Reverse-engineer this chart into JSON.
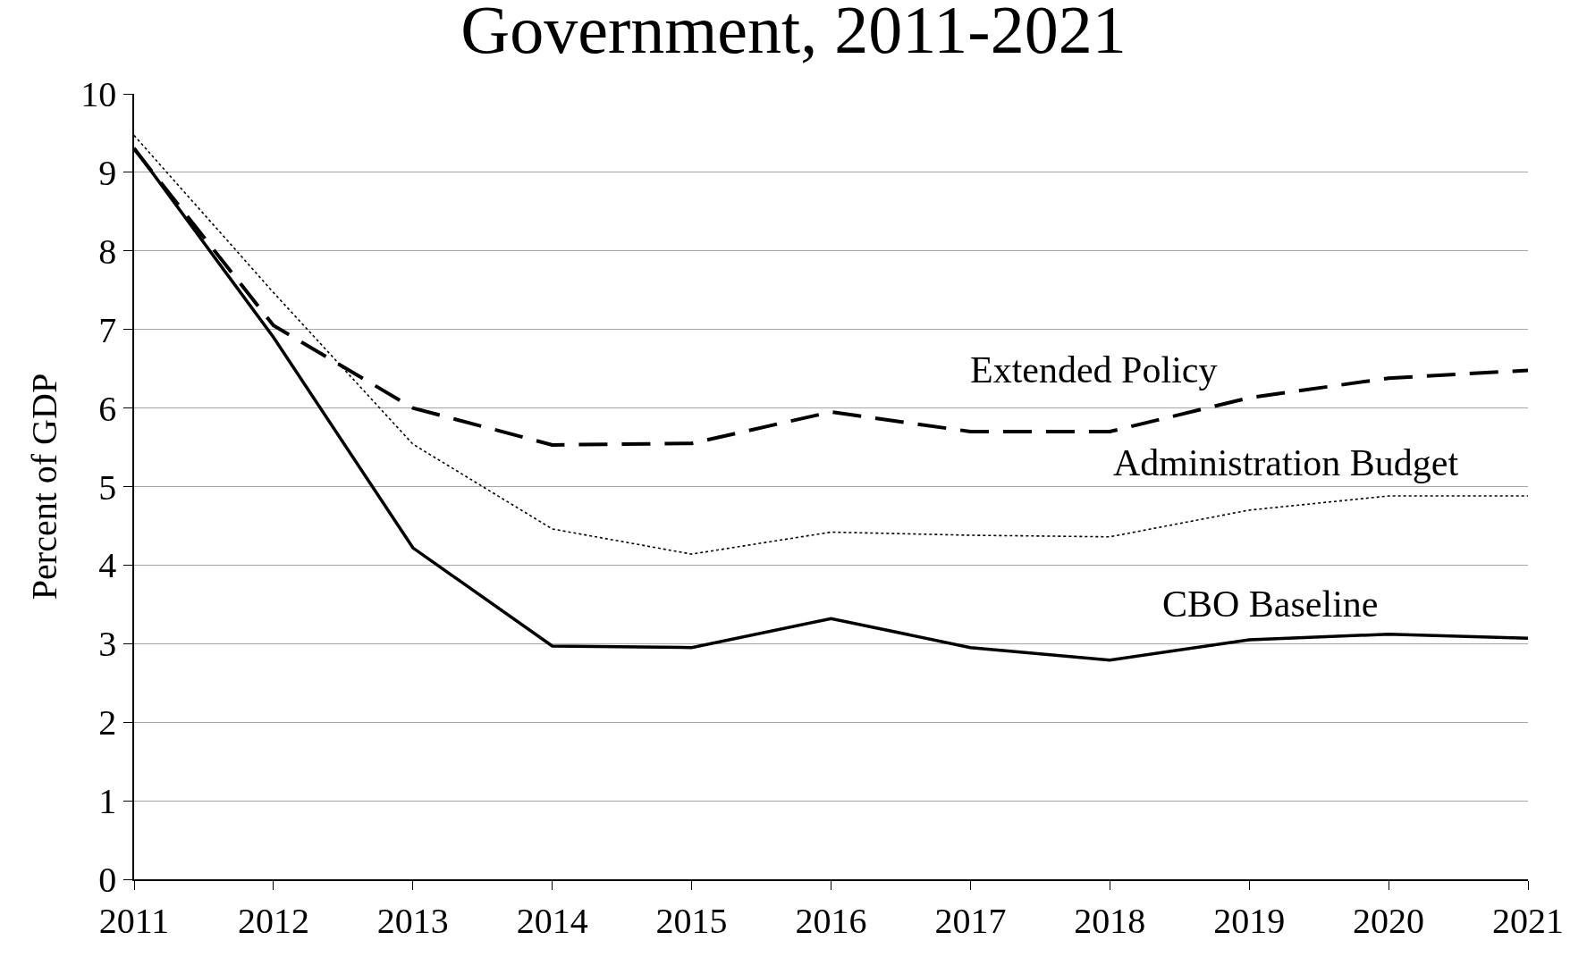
{
  "chart_data": {
    "type": "line",
    "title": "Government, 2011-2021",
    "ylabel": "Percent of GDP",
    "x": [
      2011,
      2012,
      2013,
      2014,
      2015,
      2016,
      2017,
      2018,
      2019,
      2020,
      2021
    ],
    "series": [
      {
        "name": "Extended Policy",
        "color": "#000000",
        "line_style": "dashed",
        "values": [
          9.3,
          7.05,
          6.0,
          5.53,
          5.55,
          5.95,
          5.7,
          5.7,
          6.13,
          6.38,
          6.48
        ]
      },
      {
        "name": "Administration Budget",
        "color": "#000000",
        "line_style": "dotted",
        "values": [
          9.47,
          7.47,
          5.54,
          4.46,
          4.14,
          4.42,
          4.38,
          4.36,
          4.7,
          4.88,
          4.88
        ]
      },
      {
        "name": "CBO Baseline",
        "color": "#000000",
        "line_style": "solid",
        "values": [
          9.31,
          6.9,
          4.22,
          2.97,
          2.95,
          3.32,
          2.95,
          2.79,
          3.05,
          3.12,
          3.07
        ]
      }
    ],
    "xlim": [
      2011,
      2021
    ],
    "xticks": [
      2011,
      2012,
      2013,
      2014,
      2015,
      2016,
      2017,
      2018,
      2019,
      2020,
      2021
    ],
    "ylim": [
      0,
      10
    ],
    "yticks": [
      0,
      1,
      2,
      3,
      4,
      5,
      6,
      7,
      8,
      9,
      10
    ],
    "grid": "y",
    "legend": false
  }
}
